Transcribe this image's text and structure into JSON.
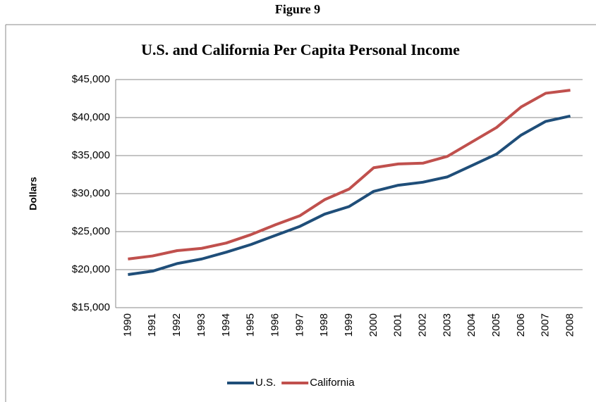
{
  "chart_data": {
    "type": "line",
    "figure_label": "Figure 9",
    "title": "U.S. and California Per Capita Personal Income",
    "y_label": "Dollars",
    "categories": [
      "1990",
      "1991",
      "1992",
      "1993",
      "1994",
      "1995",
      "1996",
      "1997",
      "1998",
      "1999",
      "2000",
      "2001",
      "2002",
      "2003",
      "2004",
      "2005",
      "2006",
      "2007",
      "2008"
    ],
    "series": [
      {
        "name": "U.S.",
        "color": "#1f4e79",
        "values": [
          19350,
          19800,
          20800,
          21400,
          22300,
          23300,
          24500,
          25700,
          27300,
          28300,
          30300,
          31100,
          31500,
          32200,
          33700,
          35200,
          37700,
          39500,
          40200
        ]
      },
      {
        "name": "California",
        "color": "#c0504d",
        "values": [
          21400,
          21800,
          22500,
          22800,
          23500,
          24600,
          25900,
          27100,
          29200,
          30600,
          33400,
          33900,
          34000,
          34900,
          36800,
          38700,
          41400,
          43200,
          43600
        ]
      }
    ],
    "ylim": [
      15000,
      45000
    ],
    "yticks": [
      {
        "value": 15000,
        "label": "$15,000"
      },
      {
        "value": 20000,
        "label": "$20,000"
      },
      {
        "value": 25000,
        "label": "$25,000"
      },
      {
        "value": 30000,
        "label": "$30,000"
      },
      {
        "value": 35000,
        "label": "$35,000"
      },
      {
        "value": 40000,
        "label": "$40,000"
      },
      {
        "value": 45000,
        "label": "$45,000"
      }
    ],
    "grid": true,
    "legend": "bottom"
  }
}
